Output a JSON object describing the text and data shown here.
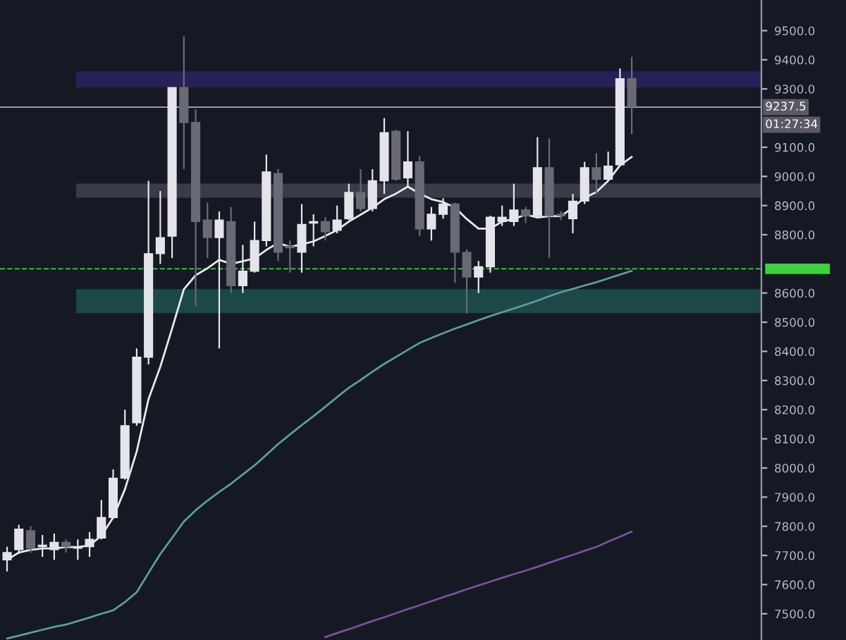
{
  "chart_data": {
    "type": "candlestick",
    "categories": [
      null,
      null,
      null,
      null,
      null,
      null,
      null,
      null,
      null,
      null,
      null,
      null,
      null,
      null,
      null,
      null,
      null,
      null,
      null,
      null,
      null,
      null,
      null,
      null,
      null,
      null,
      null,
      null,
      null,
      null,
      null,
      null,
      null,
      null,
      null,
      null,
      null,
      null,
      null,
      null,
      null,
      null,
      null,
      null,
      null,
      null,
      null,
      null,
      null,
      null,
      null,
      null,
      null,
      null
    ],
    "ohlc": [
      [
        7685,
        7730,
        7645,
        7710
      ],
      [
        7720,
        7805,
        7705,
        7790
      ],
      [
        7785,
        7800,
        7710,
        7725
      ],
      [
        7730,
        7770,
        7695,
        7735
      ],
      [
        7720,
        7775,
        7685,
        7745
      ],
      [
        7745,
        7755,
        7710,
        7730
      ],
      [
        7725,
        7755,
        7685,
        7730
      ],
      [
        7730,
        7780,
        7695,
        7755
      ],
      [
        7760,
        7890,
        7755,
        7830
      ],
      [
        7830,
        7995,
        7825,
        7965
      ],
      [
        7965,
        8200,
        7960,
        8145
      ],
      [
        8155,
        8410,
        8145,
        8380
      ],
      [
        8380,
        8985,
        8355,
        8735
      ],
      [
        8735,
        8950,
        8700,
        8790
      ],
      [
        8795,
        9305,
        8720,
        9305
      ],
      [
        9305,
        9480,
        9025,
        9185
      ],
      [
        9185,
        9230,
        8555,
        8845
      ],
      [
        8850,
        8910,
        8720,
        8790
      ],
      [
        8790,
        8880,
        8410,
        8850
      ],
      [
        8845,
        8895,
        8600,
        8625
      ],
      [
        8625,
        8765,
        8600,
        8675
      ],
      [
        8675,
        8845,
        8670,
        8780
      ],
      [
        8780,
        9075,
        8760,
        9015
      ],
      [
        9010,
        9025,
        8710,
        8740
      ],
      [
        8760,
        8780,
        8670,
        8755
      ],
      [
        8740,
        8905,
        8670,
        8835
      ],
      [
        8840,
        8870,
        8760,
        8845
      ],
      [
        8845,
        8860,
        8780,
        8810
      ],
      [
        8815,
        8900,
        8805,
        8850
      ],
      [
        8855,
        8975,
        8850,
        8945
      ],
      [
        8945,
        9025,
        8880,
        8890
      ],
      [
        8890,
        9025,
        8880,
        8985
      ],
      [
        8985,
        9200,
        8940,
        9150
      ],
      [
        9155,
        9160,
        8985,
        8990
      ],
      [
        8995,
        9155,
        8965,
        9050
      ],
      [
        9050,
        9070,
        8795,
        8820
      ],
      [
        8820,
        8895,
        8780,
        8870
      ],
      [
        8870,
        8925,
        8855,
        8905
      ],
      [
        8905,
        8910,
        8635,
        8740
      ],
      [
        8740,
        8750,
        8530,
        8655
      ],
      [
        8655,
        8710,
        8600,
        8690
      ],
      [
        8690,
        8865,
        8670,
        8860
      ],
      [
        8845,
        8900,
        8830,
        8860
      ],
      [
        8845,
        8975,
        8830,
        8885
      ],
      [
        8885,
        8895,
        8840,
        8865
      ],
      [
        8865,
        9135,
        8860,
        9030
      ],
      [
        9030,
        9130,
        8720,
        8865
      ],
      [
        8870,
        8880,
        8850,
        8865
      ],
      [
        8855,
        8940,
        8805,
        8915
      ],
      [
        8915,
        9050,
        8905,
        9030
      ],
      [
        9030,
        9080,
        8940,
        8990
      ],
      [
        8990,
        9085,
        8985,
        9035
      ],
      [
        9040,
        9370,
        9035,
        9335
      ],
      [
        9335,
        9410,
        9145,
        9240
      ]
    ],
    "colors": [
      "#e4e4ea",
      "#e4e4ea",
      "#6a6a76",
      "#e4e4ea",
      "#e4e4ea",
      "#6a6a76",
      "#e4e4ea",
      "#e4e4ea",
      "#e4e4ea",
      "#e4e4ea",
      "#e4e4ea",
      "#e4e4ea",
      "#e4e4ea",
      "#e4e4ea",
      "#e4e4ea",
      "#6a6a76",
      "#6a6a76",
      "#6a6a76",
      "#e4e4ea",
      "#6a6a76",
      "#e4e4ea",
      "#e4e4ea",
      "#e4e4ea",
      "#6a6a76",
      "#6a6a76",
      "#e4e4ea",
      "#e4e4ea",
      "#6a6a76",
      "#e4e4ea",
      "#e4e4ea",
      "#6a6a76",
      "#e4e4ea",
      "#e4e4ea",
      "#6a6a76",
      "#e4e4ea",
      "#6a6a76",
      "#e4e4ea",
      "#e4e4ea",
      "#6a6a76",
      "#6a6a76",
      "#e4e4ea",
      "#e4e4ea",
      "#e4e4ea",
      "#e4e4ea",
      "#6a6a76",
      "#e4e4ea",
      "#6a6a76",
      "#6a6a76",
      "#e4e4ea",
      "#e4e4ea",
      "#6a6a76",
      "#e4e4ea",
      "#e4e4ea",
      "#6a6a76"
    ],
    "series": [
      {
        "type": "line",
        "color": "#e8e8ee",
        "values": [
          7685,
          7710,
          7719,
          7724,
          7724,
          7729,
          7729,
          7734,
          7768,
          7830,
          7927,
          8057,
          8236,
          8347,
          8478,
          8613,
          8661,
          8685,
          8714,
          8700,
          8709,
          8719,
          8748,
          8772,
          8758,
          8767,
          8777,
          8796,
          8816,
          8845,
          8869,
          8893,
          8922,
          8941,
          8965,
          8941,
          8922,
          8912,
          8893,
          8854,
          8821,
          8821,
          8845,
          8854,
          8869,
          8859,
          8864,
          8864,
          8893,
          8927,
          8946,
          8985,
          9038,
          9067
        ]
      },
      {
        "type": "line",
        "color": "#5f9c9c",
        "values": [
          7415,
          7425,
          7435,
          7445,
          7455,
          7463,
          7475,
          7487,
          7500,
          7512,
          7540,
          7574,
          7640,
          7705,
          7760,
          7816,
          7855,
          7888,
          7918,
          7946,
          7978,
          8009,
          8045,
          8082,
          8115,
          8147,
          8178,
          8210,
          8243,
          8275,
          8302,
          8330,
          8357,
          8381,
          8405,
          8429,
          8446,
          8462,
          8478,
          8492,
          8507,
          8521,
          8534,
          8547,
          8560,
          8574,
          8589,
          8603,
          8614,
          8626,
          8637,
          8650,
          8663,
          8676
        ]
      },
      {
        "type": "line",
        "color": "#7a4f9e",
        "values": [
          null,
          null,
          null,
          null,
          null,
          null,
          null,
          null,
          null,
          null,
          null,
          null,
          null,
          null,
          null,
          null,
          null,
          null,
          null,
          null,
          null,
          null,
          null,
          null,
          null,
          null,
          null,
          7420,
          7434,
          7447,
          7461,
          7475,
          7488,
          7502,
          7516,
          7529,
          7543,
          7557,
          7570,
          7584,
          7597,
          7610,
          7623,
          7636,
          7648,
          7661,
          7675,
          7689,
          7702,
          7716,
          7729,
          7747,
          7764,
          7782
        ]
      }
    ],
    "ylim": [
      7410,
      9605
    ],
    "yticks": [
      {
        "value": 7500,
        "label": "7500.0"
      },
      {
        "value": 7600,
        "label": "7600.0"
      },
      {
        "value": 7700,
        "label": "7700.0"
      },
      {
        "value": 7800,
        "label": "7800.0"
      },
      {
        "value": 7900,
        "label": "7900.0"
      },
      {
        "value": 8000,
        "label": "8000.0"
      },
      {
        "value": 8100,
        "label": "8100.0"
      },
      {
        "value": 8200,
        "label": "8200.0"
      },
      {
        "value": 8300,
        "label": "8300.0"
      },
      {
        "value": 8400,
        "label": "8400.0"
      },
      {
        "value": 8500,
        "label": "8500.0"
      },
      {
        "value": 8600,
        "label": "8600.0"
      },
      {
        "value": 8800,
        "label": "8800.0"
      },
      {
        "value": 8900,
        "label": "8900.0"
      },
      {
        "value": 9000,
        "label": "9000.0"
      },
      {
        "value": 9100,
        "label": "9100.0"
      },
      {
        "value": 9300,
        "label": "9300.0"
      },
      {
        "value": 9400,
        "label": "9400.0"
      },
      {
        "value": 9500,
        "label": "9500.0"
      }
    ],
    "bands": [
      {
        "axis": "y",
        "from": 9305,
        "to": 9360,
        "color": "#2a2058"
      },
      {
        "axis": "y",
        "from": 8927,
        "to": 8975,
        "color": "#3a3b48"
      },
      {
        "axis": "y",
        "from": 8531,
        "to": 8613,
        "color": "#1c4848"
      }
    ],
    "ref_lines": [
      {
        "axis": "y",
        "value": 9237.5,
        "label": "9237.5",
        "color": "#9a9aa6",
        "line_style": "solid"
      },
      {
        "axis": "y",
        "value": 8683,
        "color": "#3fd23f",
        "line_style": "dashed"
      }
    ],
    "annotations": [
      "01:27:34"
    ],
    "tick_labels": "y"
  }
}
